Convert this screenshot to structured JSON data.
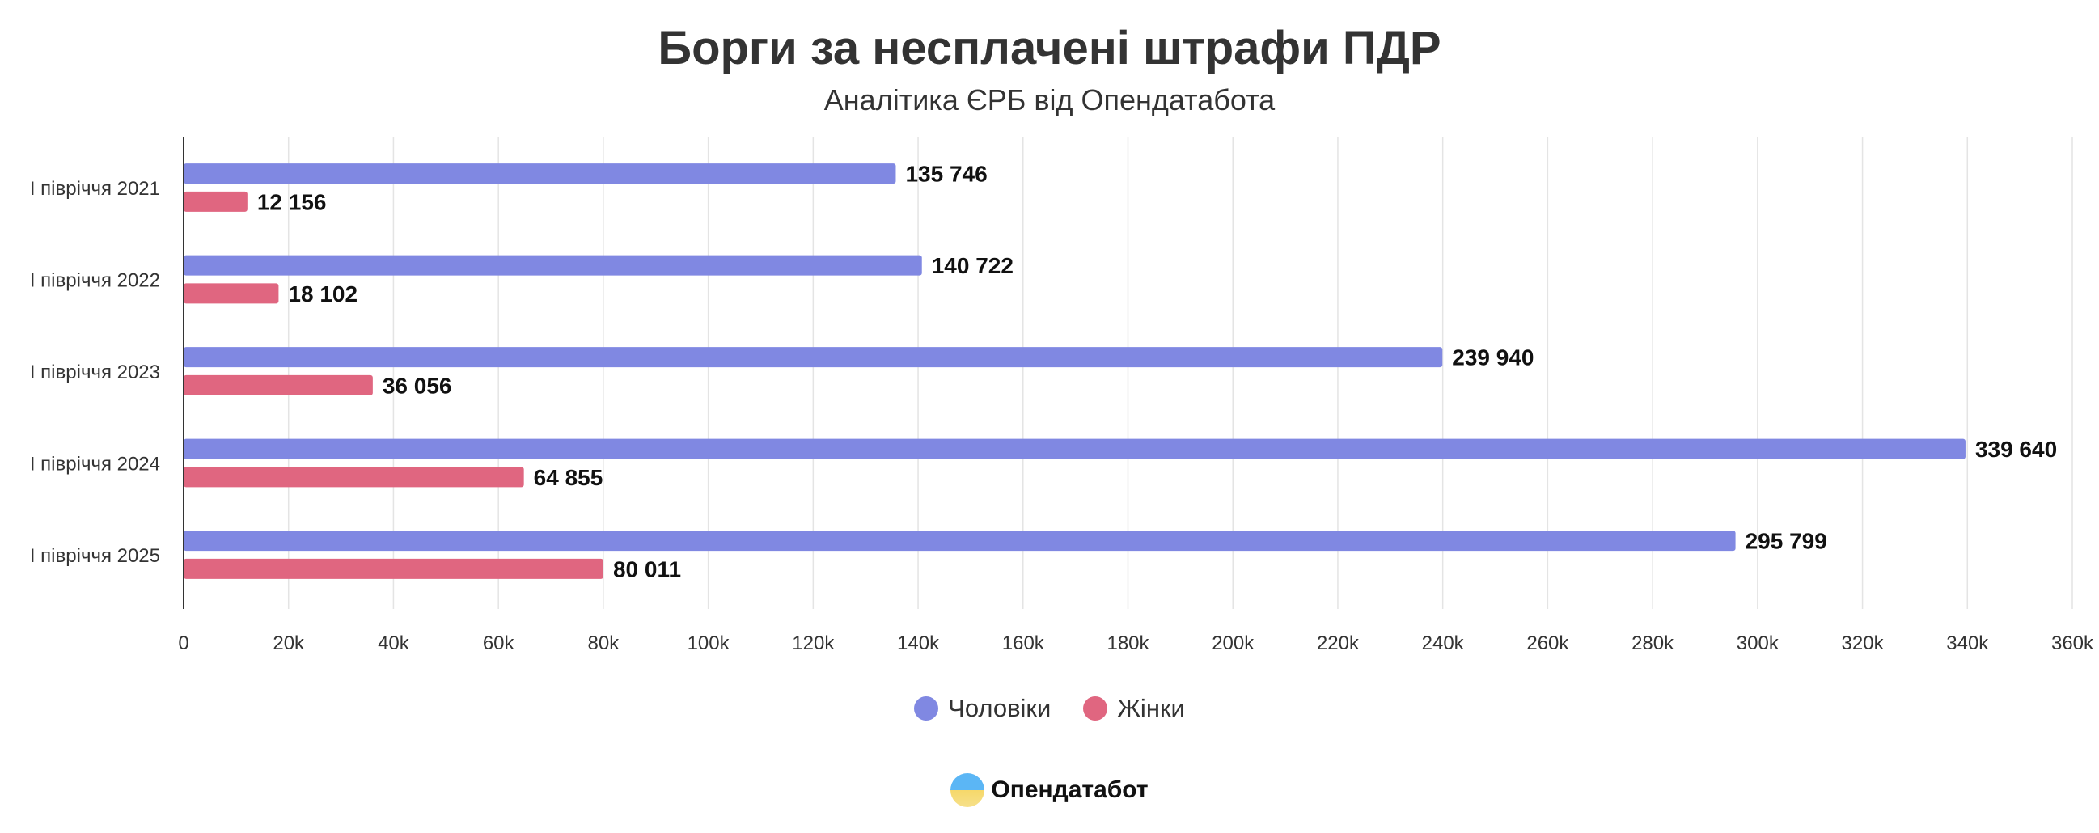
{
  "chart_data": {
    "type": "bar",
    "orientation": "horizontal",
    "title": "Борги за несплачені штрафи ПДР",
    "subtitle": "Аналітика ЄРБ від Опендатабота",
    "categories": [
      "I півріччя 2021",
      "I півріччя 2022",
      "I півріччя 2023",
      "I півріччя 2024",
      "I півріччя 2025"
    ],
    "series": [
      {
        "name": "Чоловіки",
        "color": "#8088e2",
        "values": [
          135746,
          140722,
          239940,
          339640,
          295799
        ],
        "labels": [
          "135 746",
          "140 722",
          "239 940",
          "339 640",
          "295 799"
        ]
      },
      {
        "name": "Жінки",
        "color": "#e06680",
        "values": [
          12156,
          18102,
          36056,
          64855,
          80011
        ],
        "labels": [
          "12 156",
          "18 102",
          "36 056",
          "64 855",
          "80 011"
        ]
      }
    ],
    "xlim": [
      0,
      360000
    ],
    "xticks": [
      0,
      20000,
      40000,
      60000,
      80000,
      100000,
      120000,
      140000,
      160000,
      180000,
      200000,
      220000,
      240000,
      260000,
      280000,
      300000,
      320000,
      340000,
      360000
    ],
    "xtick_labels": [
      "0",
      "20k",
      "40k",
      "60k",
      "80k",
      "100k",
      "120k",
      "140k",
      "160k",
      "180k",
      "200k",
      "220k",
      "240k",
      "260k",
      "280k",
      "300k",
      "320k",
      "340k",
      "360k"
    ],
    "grid": true,
    "legend": "bottom-center"
  },
  "brand": "Опендатабот"
}
